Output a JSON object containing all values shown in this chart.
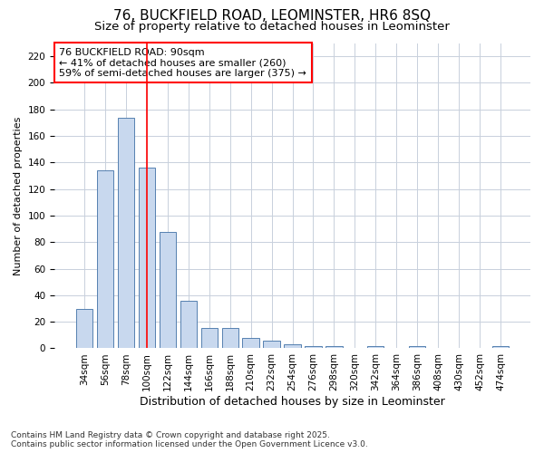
{
  "title_line1": "76, BUCKFIELD ROAD, LEOMINSTER, HR6 8SQ",
  "title_line2": "Size of property relative to detached houses in Leominster",
  "xlabel": "Distribution of detached houses by size in Leominster",
  "ylabel": "Number of detached properties",
  "categories": [
    "34sqm",
    "56sqm",
    "78sqm",
    "100sqm",
    "122sqm",
    "144sqm",
    "166sqm",
    "188sqm",
    "210sqm",
    "232sqm",
    "254sqm",
    "276sqm",
    "298sqm",
    "320sqm",
    "342sqm",
    "364sqm",
    "386sqm",
    "408sqm",
    "430sqm",
    "452sqm",
    "474sqm"
  ],
  "values": [
    30,
    134,
    174,
    136,
    88,
    36,
    15,
    15,
    8,
    6,
    3,
    2,
    2,
    0,
    2,
    0,
    2,
    0,
    0,
    0,
    2
  ],
  "bar_color": "#c8d8ee",
  "bar_edge_color": "#5580b0",
  "vline_x": 3,
  "vline_color": "red",
  "annotation_text": "76 BUCKFIELD ROAD: 90sqm\n← 41% of detached houses are smaller (260)\n59% of semi-detached houses are larger (375) →",
  "annotation_box_color": "white",
  "annotation_box_edge": "red",
  "ylim": [
    0,
    230
  ],
  "yticks": [
    0,
    20,
    40,
    60,
    80,
    100,
    120,
    140,
    160,
    180,
    200,
    220
  ],
  "grid_color": "#c8d0dc",
  "footer_line1": "Contains HM Land Registry data © Crown copyright and database right 2025.",
  "footer_line2": "Contains public sector information licensed under the Open Government Licence v3.0.",
  "bg_color": "#ffffff",
  "plot_bg_color": "#ffffff",
  "title1_fontsize": 11,
  "title2_fontsize": 9.5,
  "ylabel_fontsize": 8,
  "xlabel_fontsize": 9,
  "tick_fontsize": 7.5,
  "annot_fontsize": 8,
  "footer_fontsize": 6.5
}
